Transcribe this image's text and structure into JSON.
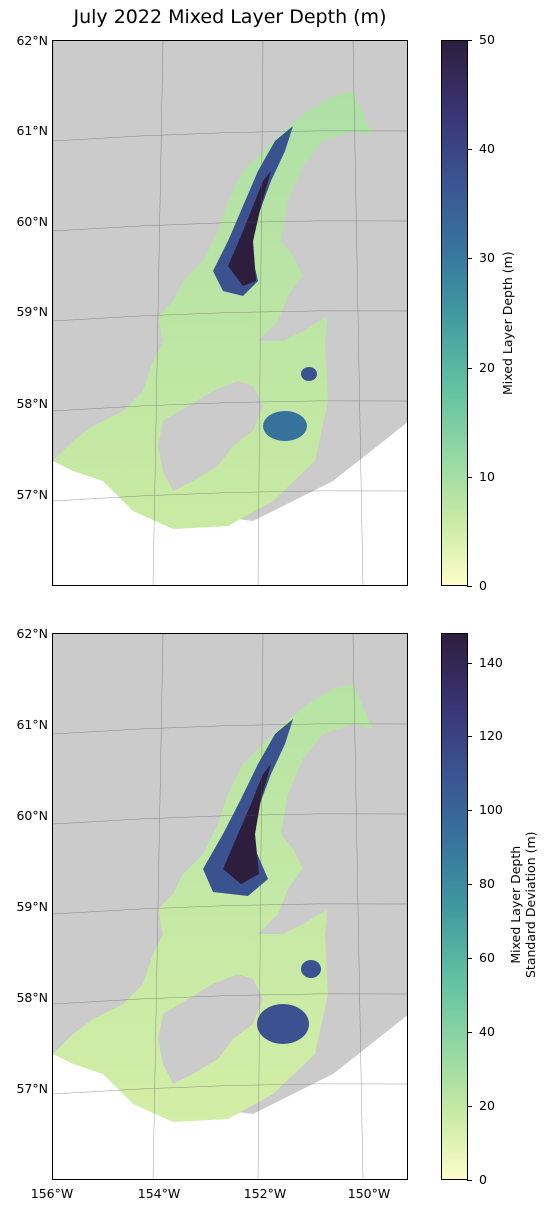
{
  "title": "July 2022 Mixed Layer Depth (m)",
  "lat_labels": [
    "62°N",
    "61°N",
    "60°N",
    "59°N",
    "58°N",
    "57°N"
  ],
  "lon_labels": [
    "156°W",
    "154°W",
    "152°W",
    "150°W"
  ],
  "colormap": [
    "#fdfdc9",
    "#c6e9a3",
    "#8fd6a4",
    "#5ebfa2",
    "#3f98a0",
    "#37729d",
    "#3b5291",
    "#3a3372",
    "#2d1e3e"
  ],
  "land_color": "#cbcbcb",
  "top_panel": {
    "colorbar_label": "Mixed Layer Depth (m)",
    "colorbar_ticks": [
      "0",
      "10",
      "20",
      "30",
      "40",
      "50"
    ],
    "vmin": 0,
    "vmax": 50
  },
  "bottom_panel": {
    "colorbar_label_line1": "Mixed Layer Depth",
    "colorbar_label_line2": "Standard Deviation (m)",
    "colorbar_ticks": [
      "0",
      "20",
      "40",
      "60",
      "80",
      "100",
      "120",
      "140"
    ],
    "vmin": 0,
    "vmax": 148
  }
}
